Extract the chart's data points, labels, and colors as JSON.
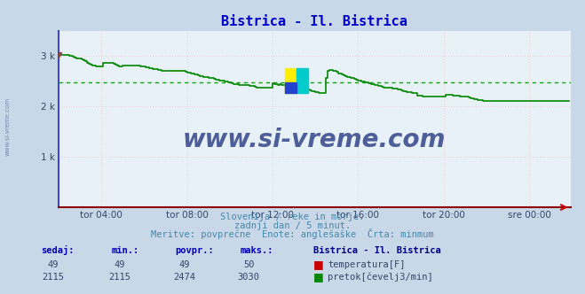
{
  "title": "Bistrica - Il. Bistrica",
  "title_color": "#0000cc",
  "title_fontsize": 11,
  "bg_color": "#c8d8e8",
  "plot_bg_color": "#e8f0f8",
  "xlim": [
    0,
    287
  ],
  "ylim": [
    0,
    3500
  ],
  "ytick_positions": [
    1000,
    2000,
    3000
  ],
  "ytick_labels": [
    "1 k",
    "2 k",
    "3 k"
  ],
  "xtick_positions": [
    24,
    72,
    120,
    168,
    216,
    264
  ],
  "xtick_labels": [
    "tor 04:00",
    "tor 08:00",
    "tor 12:00",
    "tor 16:00",
    "tor 20:00",
    "sre 00:00"
  ],
  "flow_color": "#008800",
  "temp_color": "#cc0000",
  "avg_line_value": 2474,
  "avg_line_color": "#00aa00",
  "grid_color": "#ffaaaa",
  "left_spine_color": "#4444cc",
  "bottom_spine_color": "#880000",
  "subtitle1": "Slovenija / reke in morje.",
  "subtitle2": "zadnji dan / 5 minut.",
  "subtitle3": "Meritve: povprečne  Enote: anglešaške  Črta: minmum",
  "watermark_text": "www.si-vreme.com",
  "watermark_color": "#334488",
  "side_label": "www.si-vreme.com",
  "table_headers": [
    "sedaj:",
    "min.:",
    "povpr.:",
    "maks.:"
  ],
  "table_label": "Bistrica - Il. Bistrica",
  "table_temp": [
    49,
    49,
    49,
    50
  ],
  "table_flow": [
    2115,
    2115,
    2474,
    3030
  ],
  "flow_data": [
    3030,
    3030,
    3030,
    3030,
    3030,
    3030,
    3010,
    3000,
    2990,
    2970,
    2950,
    2960,
    2960,
    2940,
    2910,
    2900,
    2870,
    2850,
    2830,
    2820,
    2810,
    2800,
    2790,
    2790,
    2790,
    2870,
    2870,
    2870,
    2870,
    2870,
    2860,
    2840,
    2830,
    2810,
    2800,
    2800,
    2810,
    2810,
    2810,
    2810,
    2810,
    2810,
    2810,
    2810,
    2810,
    2810,
    2800,
    2800,
    2790,
    2780,
    2770,
    2760,
    2760,
    2750,
    2750,
    2740,
    2730,
    2720,
    2710,
    2710,
    2700,
    2700,
    2700,
    2700,
    2700,
    2700,
    2700,
    2700,
    2700,
    2700,
    2700,
    2690,
    2680,
    2670,
    2660,
    2650,
    2640,
    2630,
    2620,
    2610,
    2600,
    2590,
    2580,
    2580,
    2570,
    2560,
    2560,
    2540,
    2530,
    2530,
    2520,
    2520,
    2510,
    2500,
    2490,
    2480,
    2470,
    2460,
    2450,
    2440,
    2440,
    2430,
    2420,
    2420,
    2420,
    2420,
    2420,
    2410,
    2400,
    2400,
    2390,
    2380,
    2380,
    2380,
    2380,
    2380,
    2380,
    2380,
    2380,
    2380,
    2460,
    2450,
    2440,
    2430,
    2440,
    2430,
    2420,
    2420,
    2420,
    2410,
    2400,
    2400,
    2390,
    2380,
    2380,
    2370,
    2360,
    2360,
    2350,
    2340,
    2330,
    2320,
    2310,
    2300,
    2290,
    2280,
    2270,
    2260,
    2260,
    2260,
    2560,
    2700,
    2720,
    2720,
    2710,
    2700,
    2690,
    2660,
    2650,
    2640,
    2620,
    2610,
    2590,
    2580,
    2570,
    2560,
    2540,
    2530,
    2520,
    2510,
    2500,
    2490,
    2480,
    2470,
    2460,
    2450,
    2440,
    2430,
    2420,
    2410,
    2400,
    2390,
    2380,
    2380,
    2380,
    2380,
    2370,
    2360,
    2350,
    2350,
    2340,
    2330,
    2320,
    2310,
    2300,
    2290,
    2290,
    2280,
    2270,
    2260,
    2260,
    2220,
    2210,
    2210,
    2200,
    2200,
    2190,
    2190,
    2190,
    2190,
    2190,
    2190,
    2190,
    2190,
    2190,
    2190,
    2190,
    2230,
    2230,
    2230,
    2230,
    2220,
    2220,
    2220,
    2210,
    2200,
    2200,
    2200,
    2190,
    2190,
    2180,
    2170,
    2160,
    2150,
    2140,
    2130,
    2130,
    2120,
    2115,
    2115,
    2115,
    2115,
    2115,
    2115,
    2115,
    2115,
    2115,
    2115,
    2115,
    2115,
    2115,
    2115,
    2115,
    2115,
    2115,
    2115,
    2115,
    2115,
    2115,
    2115,
    2115,
    2115,
    2115,
    2115,
    2115,
    2115,
    2115,
    2115,
    2115,
    2115,
    2115,
    2115,
    2115,
    2115,
    2115,
    2115,
    2115,
    2115,
    2115,
    2115,
    2115,
    2115,
    2115,
    2115,
    2115,
    2115,
    2115
  ]
}
